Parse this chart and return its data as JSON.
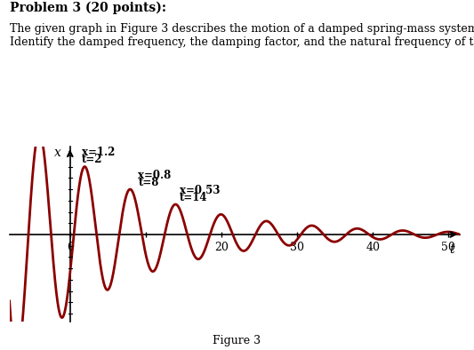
{
  "title_text": "Problem 3 (20 points):",
  "subtitle_text": "The given graph in Figure 3 describes the motion of a damped spring-mass system.\nIdentify the damped frequency, the damping factor, and the natural frequency of this system.",
  "figure_label": "Figure 3",
  "curve_color": "#8B0000",
  "curve_linewidth": 2.0,
  "background_color": "#ffffff",
  "xlabel": "t",
  "ylabel": "x",
  "t_start": -8.0,
  "t_end": 51.5,
  "x_lim": [
    -8.0,
    51.5
  ],
  "y_lim": [
    -1.55,
    1.55
  ],
  "annotation_fontsize": 8.5,
  "axis_label_fontsize": 10,
  "text_fontsize": 9,
  "title_fontsize": 10,
  "peak1_label": "x=1.2\nt=2",
  "peak2_label": "x=0.8\nt=8",
  "peak3_label": "x=0.53\nt=14"
}
